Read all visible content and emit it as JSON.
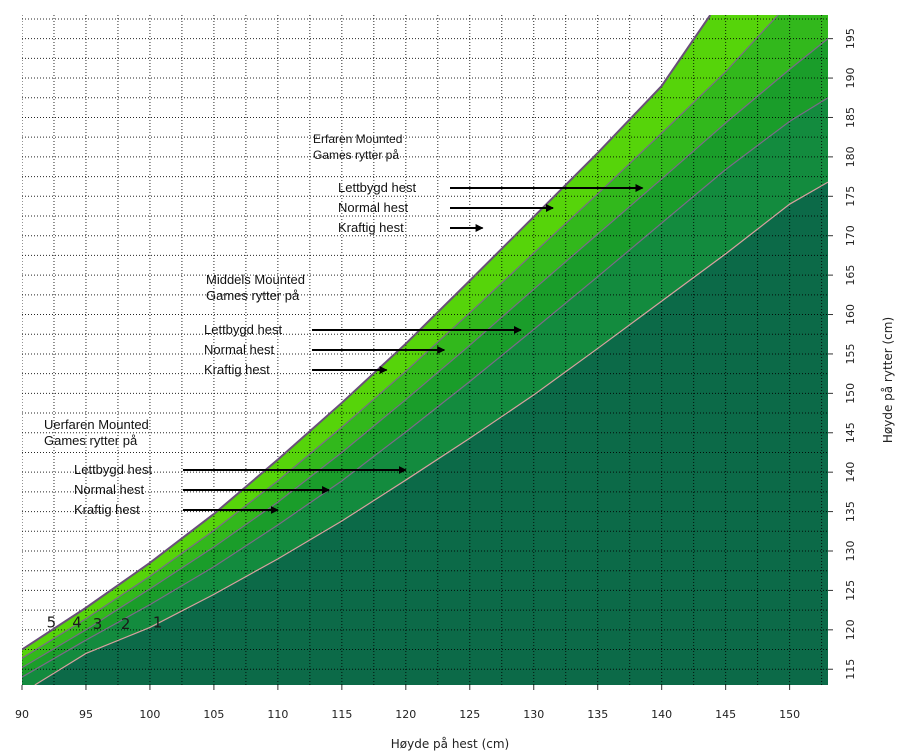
{
  "chart_data": {
    "type": "area",
    "xlabel": "Høyde på hest (cm)",
    "ylabel": "Høyde på rytter (cm)",
    "xlim": [
      90,
      153
    ],
    "ylim": [
      113,
      198
    ],
    "x_ticks": [
      90,
      95,
      100,
      105,
      110,
      115,
      120,
      125,
      130,
      135,
      140,
      145,
      150
    ],
    "y_ticks": [
      115,
      120,
      125,
      130,
      135,
      140,
      145,
      150,
      155,
      160,
      165,
      170,
      175,
      180,
      185,
      190,
      195
    ],
    "grid": true,
    "colors": [
      "#0c6a48",
      "#138b3e",
      "#1a9d2a",
      "#32b81c",
      "#56d40a",
      "#ffffff"
    ],
    "boundaries": [
      {
        "label": "1",
        "points": [
          [
            91,
            113
          ],
          [
            93,
            115
          ],
          [
            95,
            117
          ],
          [
            100,
            120.3
          ],
          [
            105,
            124.5
          ],
          [
            110,
            129
          ],
          [
            115,
            133.8
          ],
          [
            120,
            139
          ],
          [
            125,
            144.3
          ],
          [
            130,
            149.8
          ],
          [
            135,
            155.7
          ],
          [
            140,
            161.7
          ],
          [
            145,
            167.7
          ],
          [
            150,
            174
          ],
          [
            153,
            176.8
          ]
        ]
      },
      {
        "label": "2",
        "points": [
          [
            90,
            114
          ],
          [
            95,
            118.7
          ],
          [
            100,
            123.2
          ],
          [
            105,
            128
          ],
          [
            110,
            133.3
          ],
          [
            115,
            138.9
          ],
          [
            120,
            145.1
          ],
          [
            125,
            151.5
          ],
          [
            130,
            158.1
          ],
          [
            135,
            164.8
          ],
          [
            140,
            171.6
          ],
          [
            145,
            178.4
          ],
          [
            150,
            184.5
          ],
          [
            153,
            187.5
          ]
        ]
      },
      {
        "label": "3",
        "points": [
          [
            90,
            115.2
          ],
          [
            95,
            120
          ],
          [
            100,
            125.2
          ],
          [
            105,
            130.5
          ],
          [
            110,
            136.2
          ],
          [
            115,
            142.5
          ],
          [
            120,
            149.2
          ],
          [
            125,
            156.1
          ],
          [
            130,
            163.2
          ],
          [
            135,
            170.2
          ],
          [
            140,
            177.2
          ],
          [
            145,
            184.3
          ],
          [
            150,
            191.1
          ],
          [
            153,
            195
          ]
        ]
      },
      {
        "label": "4",
        "points": [
          [
            90,
            116.4
          ],
          [
            95,
            121.4
          ],
          [
            100,
            126.8
          ],
          [
            105,
            132.6
          ],
          [
            110,
            138.9
          ],
          [
            115,
            145.7
          ],
          [
            120,
            152.8
          ],
          [
            125,
            160.2
          ],
          [
            130,
            167.8
          ],
          [
            135,
            175.3
          ],
          [
            140,
            183
          ],
          [
            145,
            190.8
          ],
          [
            149.1,
            198
          ]
        ]
      },
      {
        "label": "5",
        "points": [
          [
            90,
            117.5
          ],
          [
            95,
            122.8
          ],
          [
            100,
            128.5
          ],
          [
            105,
            134.7
          ],
          [
            110,
            141.6
          ],
          [
            115,
            148.8
          ],
          [
            120,
            156.3
          ],
          [
            125,
            164.3
          ],
          [
            130,
            172.4
          ],
          [
            135,
            180.5
          ],
          [
            140,
            189
          ],
          [
            143.8,
            198
          ]
        ]
      }
    ],
    "annotations": [
      {
        "title": [
          "Erfaren Mounted",
          "Games rytter på"
        ],
        "items": [
          {
            "label": "Lettbygd hest",
            "x": 138.5,
            "y": 177.3
          },
          {
            "label": "Normal hest",
            "x": 131.5,
            "y": 174.3
          },
          {
            "label": "Kraftig hest",
            "x": 126,
            "y": 171.4
          }
        ]
      },
      {
        "title": [
          "Middels Mounted",
          "Games rytter på"
        ],
        "items": [
          {
            "label": "Lettbygd hest",
            "x": 129,
            "y": 158.8
          },
          {
            "label": "Normal hest",
            "x": 123,
            "y": 156.3
          },
          {
            "label": "Kraftig hest",
            "x": 118.5,
            "y": 153.8
          }
        ]
      },
      {
        "title": [
          "Uerfaren Mounted",
          "Games rytter på"
        ],
        "items": [
          {
            "label": "Lettbygd hest",
            "x": 120,
            "y": 140.2
          },
          {
            "label": "Normal hest",
            "x": 114,
            "y": 137.6
          },
          {
            "label": "Kraftig hest",
            "x": 110,
            "y": 135.1
          }
        ]
      }
    ],
    "zone_labels": [
      {
        "label": "5",
        "x": 92.3,
        "y": 120.3
      },
      {
        "label": "4",
        "x": 94.3,
        "y": 120.3
      },
      {
        "label": "3",
        "x": 95.9,
        "y": 120.1
      },
      {
        "label": "2",
        "x": 98.1,
        "y": 120.1
      },
      {
        "label": "1",
        "x": 100.6,
        "y": 120.3
      }
    ]
  }
}
